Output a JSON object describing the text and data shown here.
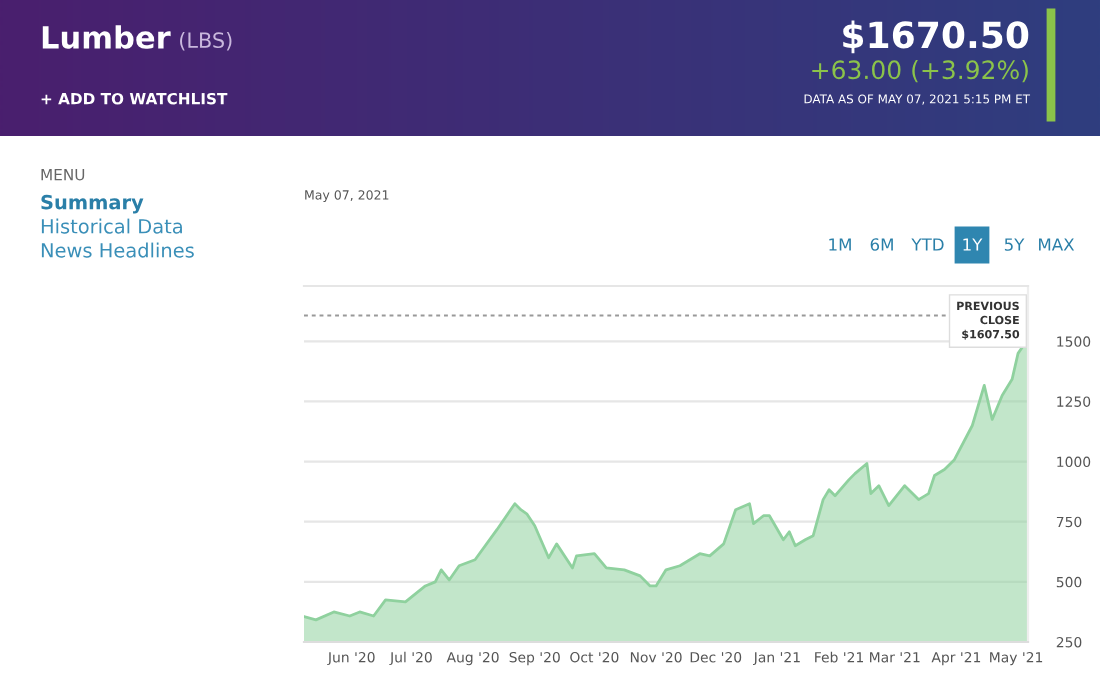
{
  "chart_data": {
    "type": "area",
    "title": "Lumber",
    "subtitle": "(LBS)",
    "annotations": [
      "$1670.50",
      "+63.00 (+3.92%)",
      "DATA AS OF MAY 07, 2021 5:15 PM ET",
      "+ ADD TO WATCHLIST",
      "MENU",
      "Summary",
      "Historical Data",
      "News Headlines",
      "May 07, 2021",
      "1M",
      "6M",
      "YTD",
      "1Y",
      "5Y",
      "MAX"
    ],
    "x": [
      "2020-05-08",
      "2020-05-14",
      "2020-05-23",
      "2020-05-31",
      "2020-06-05",
      "2020-06-12",
      "2020-06-18",
      "2020-06-28",
      "2020-07-08",
      "2020-07-13",
      "2020-07-16",
      "2020-07-20",
      "2020-07-25",
      "2020-08-02",
      "2020-08-13",
      "2020-08-22",
      "2020-08-25",
      "2020-08-28",
      "2020-09-01",
      "2020-09-08",
      "2020-09-12",
      "2020-09-20",
      "2020-09-22",
      "2020-10-01",
      "2020-10-07",
      "2020-10-16",
      "2020-10-24",
      "2020-10-29",
      "2020-11-01",
      "2020-11-06",
      "2020-11-13",
      "2020-11-23",
      "2020-11-28",
      "2020-12-05",
      "2020-12-11",
      "2020-12-18",
      "2020-12-20",
      "2020-12-25",
      "2020-12-28",
      "2021-01-04",
      "2021-01-07",
      "2021-01-10",
      "2021-01-15",
      "2021-01-19",
      "2021-01-24",
      "2021-01-27",
      "2021-01-30",
      "2021-02-06",
      "2021-02-09",
      "2021-02-15",
      "2021-02-17",
      "2021-02-21",
      "2021-02-26",
      "2021-03-06",
      "2021-03-13",
      "2021-03-18",
      "2021-03-21",
      "2021-03-26",
      "2021-03-31",
      "2021-04-09",
      "2021-04-15",
      "2021-04-19",
      "2021-04-24",
      "2021-04-29",
      "2021-05-02",
      "2021-05-07"
    ],
    "series": [
      {
        "color": "#8fd19e",
        "values": [
          356,
          342,
          375,
          358,
          375,
          358,
          425,
          417,
          483,
          500,
          550,
          508,
          567,
          592,
          717,
          825,
          800,
          783,
          733,
          600,
          658,
          558,
          608,
          617,
          558,
          550,
          525,
          483,
          483,
          550,
          567,
          617,
          608,
          658,
          800,
          825,
          742,
          775,
          775,
          675,
          708,
          650,
          675,
          692,
          842,
          883,
          858,
          925,
          950,
          992,
          867,
          900,
          817,
          900,
          842,
          867,
          942,
          967,
          1008,
          1150,
          1317,
          1175,
          1275,
          1342,
          1450,
          1510
        ]
      }
    ],
    "xlim": [
      "2020-05-08",
      "2021-05-07"
    ],
    "xticks": [
      {
        "value": "2020-06-01",
        "label": "Jun '20"
      },
      {
        "value": "2020-07-01",
        "label": "Jul '20"
      },
      {
        "value": "2020-08-01",
        "label": "Aug '20"
      },
      {
        "value": "2020-09-01",
        "label": "Sep '20"
      },
      {
        "value": "2020-10-01",
        "label": "Oct '20"
      },
      {
        "value": "2020-11-01",
        "label": "Nov '20"
      },
      {
        "value": "2020-12-01",
        "label": "Dec '20"
      },
      {
        "value": "2021-01-01",
        "label": "Jan '21"
      },
      {
        "value": "2021-02-01",
        "label": "Feb '21"
      },
      {
        "value": "2021-03-01",
        "label": "Mar '21"
      },
      {
        "value": "2021-04-01",
        "label": "Apr '21"
      },
      {
        "value": "2021-05-01",
        "label": "May '21"
      }
    ],
    "ylim": [
      250,
      1730
    ],
    "yticks": [
      250,
      500,
      750,
      1000,
      1250,
      1500
    ],
    "ref_lines": [
      {
        "axis": "y",
        "value": 1607.5,
        "label": "PREVIOUS CLOSE $1607.50",
        "color": "#999999",
        "line_style": "dashed"
      }
    ],
    "grid": "y",
    "legend": false
  }
}
